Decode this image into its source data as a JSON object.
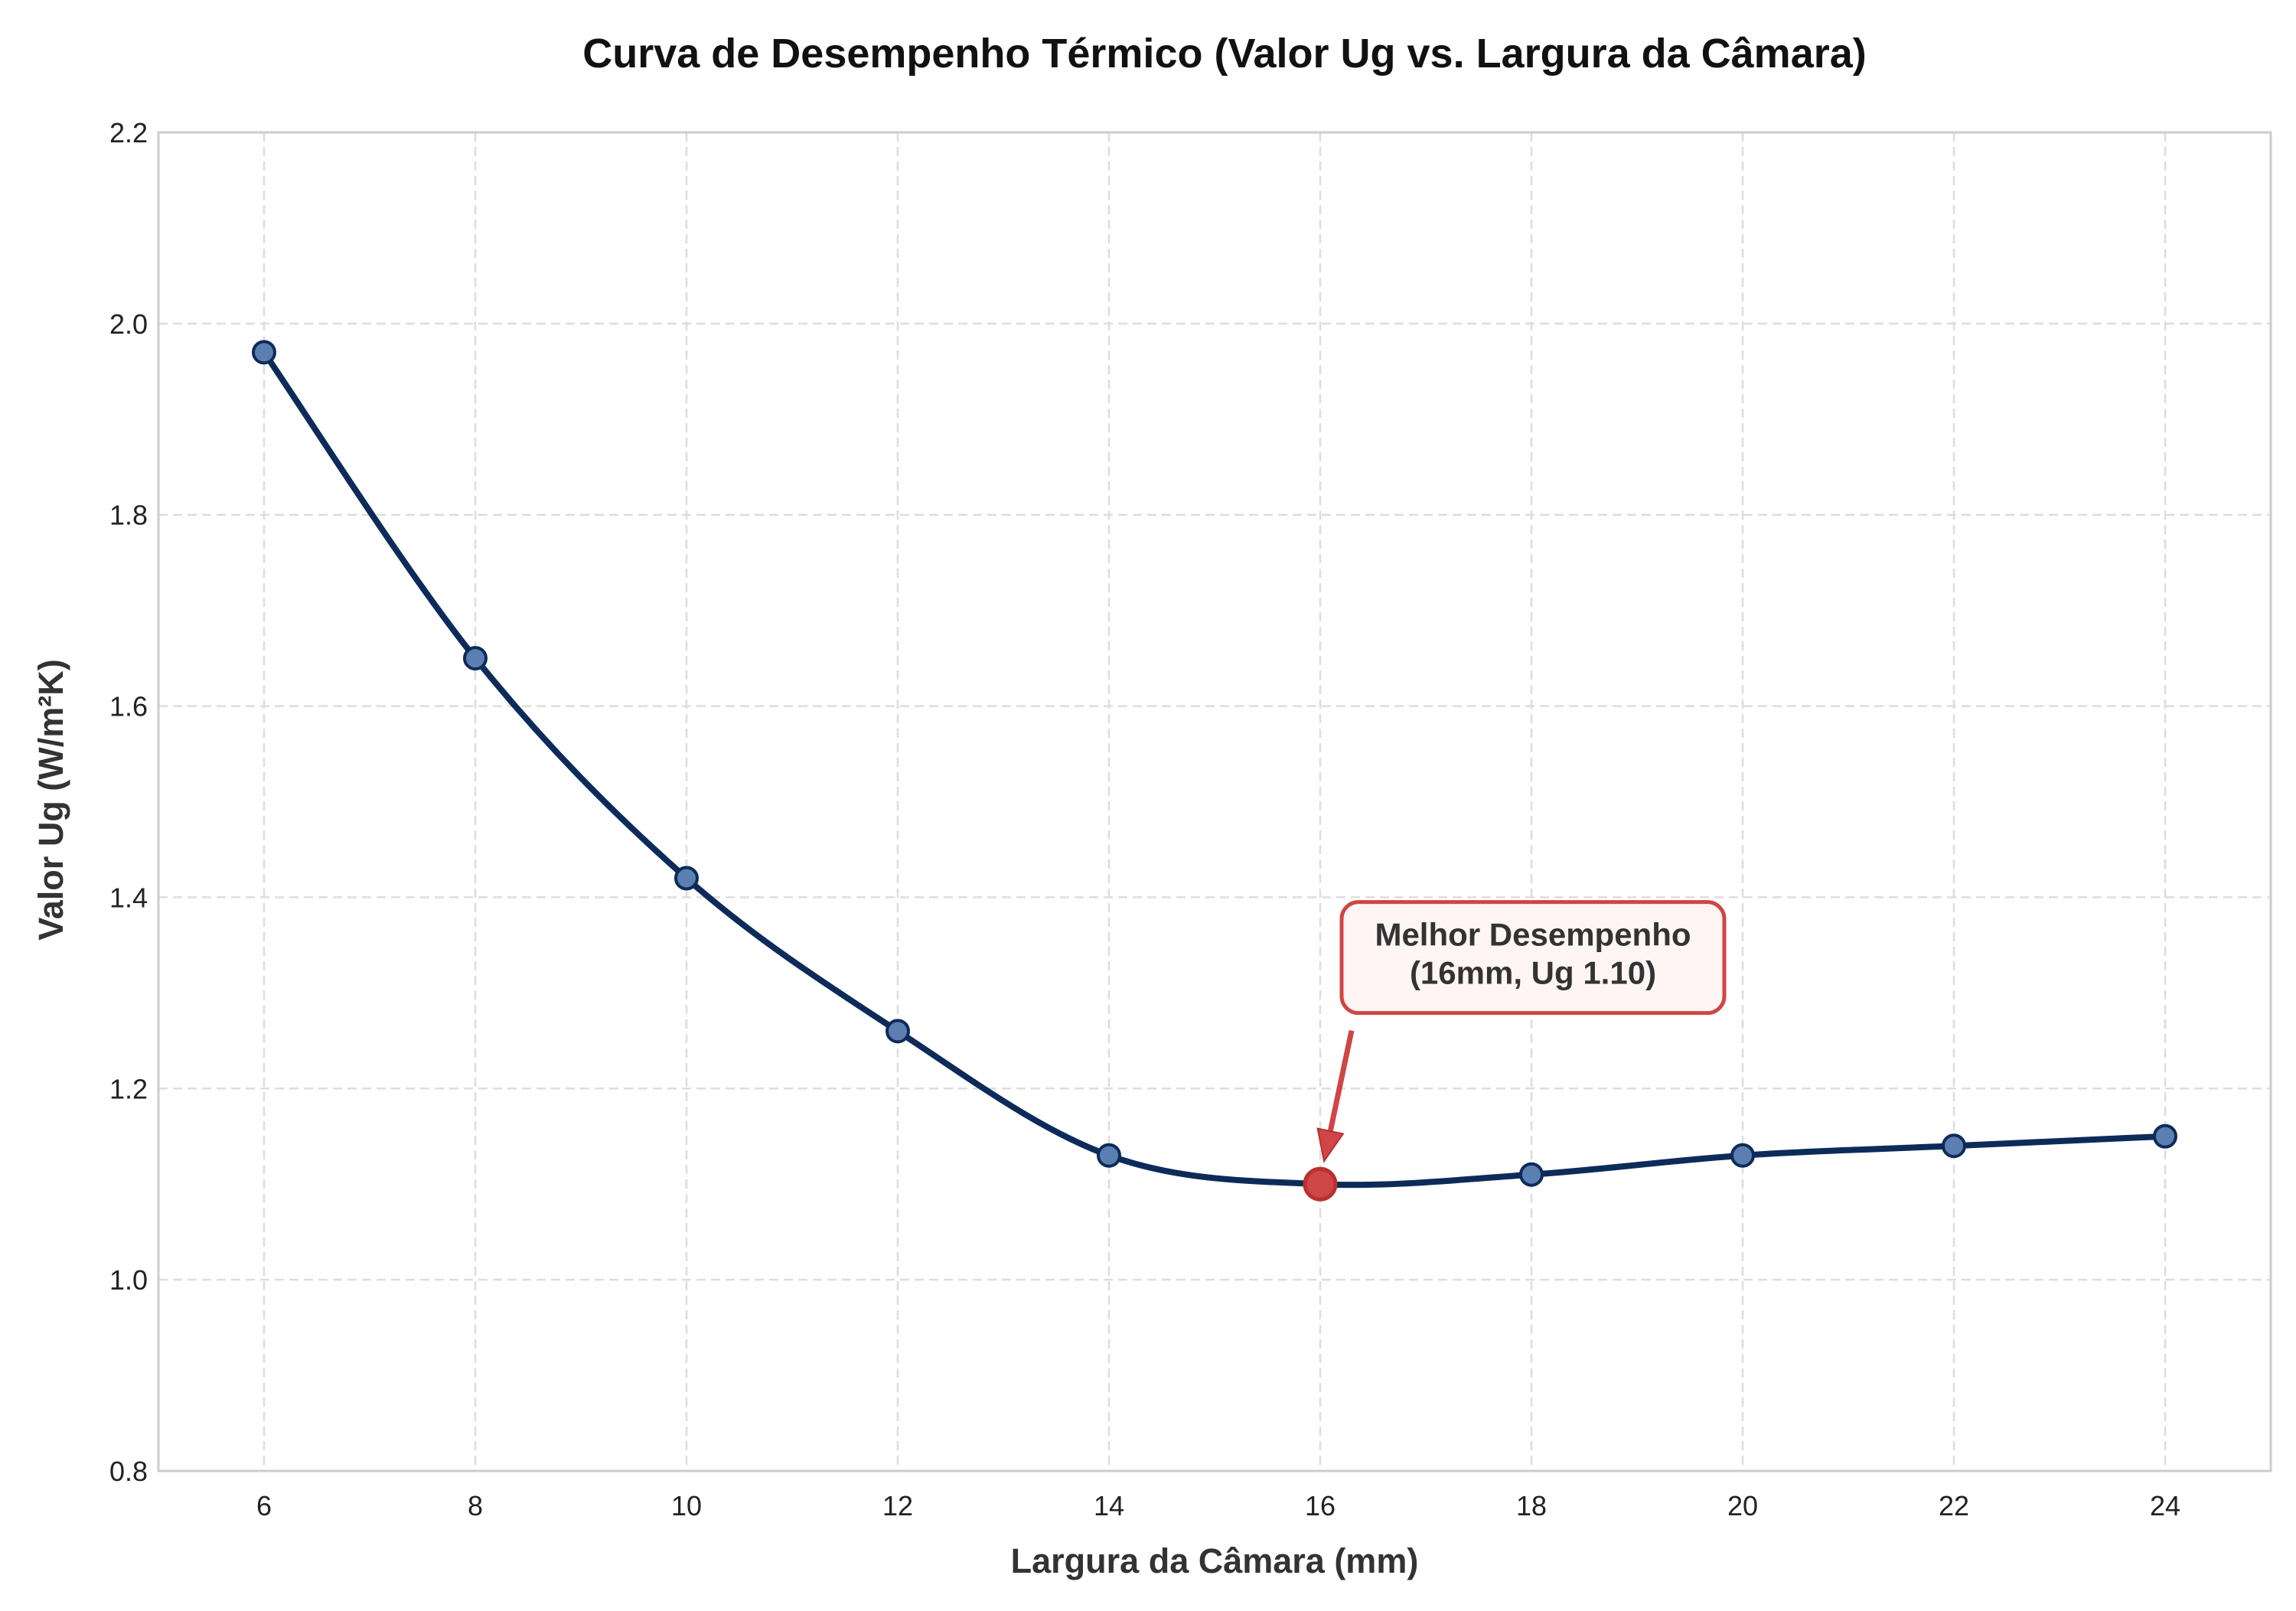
{
  "chart_data": {
    "type": "line",
    "title": "Curva de Desempenho Térmico (Valor Ug vs. Largura da Câmara)",
    "xlabel": "Largura da Câmara (mm)",
    "ylabel": "Valor Ug (W/m²K)",
    "xlim": [
      5,
      25
    ],
    "ylim": [
      0.8,
      2.2
    ],
    "x_ticks": [
      6,
      8,
      10,
      12,
      14,
      16,
      18,
      20,
      22,
      24
    ],
    "y_ticks": [
      0.8,
      1.0,
      1.2,
      1.4,
      1.6,
      1.8,
      2.0,
      2.2
    ],
    "grid": true,
    "series": [
      {
        "x": [
          6,
          8,
          10,
          12,
          14,
          16,
          18,
          20,
          22,
          24
        ],
        "y": [
          1.97,
          1.65,
          1.42,
          1.26,
          1.13,
          1.1,
          1.11,
          1.13,
          1.14,
          1.15
        ],
        "color": "#0d2b5a",
        "marker_color": "#5b7fb0"
      }
    ],
    "highlight": {
      "x": 16,
      "y": 1.1,
      "color": "#d04545"
    },
    "annotation": {
      "lines": [
        "Melhor Desempenho",
        "(16mm, Ug 1.10)"
      ],
      "x": 16,
      "y": 1.1,
      "color": "#d04545",
      "box_fill": "#fff5f5"
    }
  }
}
